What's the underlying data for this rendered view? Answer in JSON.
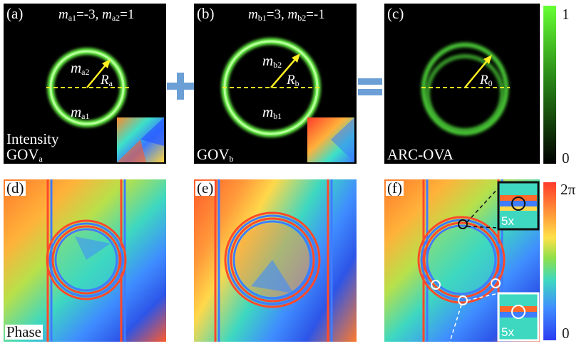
{
  "figure": {
    "panels": {
      "a": {
        "label": "(a)",
        "m_equation": "=-3, m",
        "m_sym_1": "m",
        "m_sub_1": "a1",
        "m_val_1": "=-3,",
        "m_sym_2": "m",
        "m_sub_2": "a2",
        "m_val_2": "=1",
        "inner_label_sym": "m",
        "inner_label_sub": "a2",
        "outer_label_sym": "m",
        "outer_label_sub": "a1",
        "radius_sym": "R",
        "radius_sub": "a",
        "caption_line1": "Intensity",
        "caption_line2_main": "GOV",
        "caption_line2_sub": "a"
      },
      "b": {
        "label": "(b)",
        "m_sym_1": "m",
        "m_sub_1": "b1",
        "m_val_1": "=3,",
        "m_sym_2": "m",
        "m_sub_2": "b2",
        "m_val_2": "=-1",
        "inner_label_sym": "m",
        "inner_label_sub": "b2",
        "outer_label_sym": "m",
        "outer_label_sub": "b1",
        "radius_sym": "R",
        "radius_sub": "b",
        "caption_main": "GOV",
        "caption_sub": "b"
      },
      "c": {
        "label": "(c)",
        "radius_sym": "R",
        "radius_sub": "0",
        "caption": "ARC-OVA"
      },
      "d": {
        "label": "(d)",
        "caption": "Phase"
      },
      "e": {
        "label": "(e)"
      },
      "f": {
        "label": "(f)",
        "zoom_top": "5x",
        "zoom_bottom": "5x"
      }
    },
    "colorbars": {
      "intensity": {
        "max_label": "1",
        "min_label": "0",
        "color_top": "#66ff33",
        "color_bottom": "#000000"
      },
      "phase": {
        "max_label": "2π",
        "min_label": "0"
      }
    },
    "colors": {
      "ring_green": "#7dff5a",
      "arrow_yellow": "#ffee22",
      "operator_blue": "#6c9fd6"
    }
  }
}
